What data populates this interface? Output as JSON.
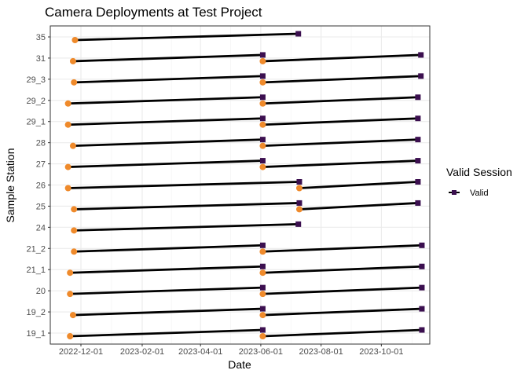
{
  "chart_data": {
    "type": "segment-timeline",
    "title": "Camera Deployments at Test Project",
    "xlabel": "Date",
    "ylabel": "Sample Station",
    "x_tick_labels": [
      "2022-12-01",
      "2023-02-01",
      "2023-04-01",
      "2023-06-01",
      "2023-08-01",
      "2023-10-01"
    ],
    "x_range": [
      "2022-10-31",
      "2023-11-19"
    ],
    "stations": [
      "35",
      "31",
      "29_3",
      "29_2",
      "29_1",
      "28",
      "27",
      "26",
      "25",
      "24",
      "21_2",
      "21_1",
      "20",
      "19_2",
      "19_1"
    ],
    "legend": {
      "title": "Valid Session",
      "items": [
        {
          "label": "Valid",
          "color": "#3b0f4f"
        }
      ]
    },
    "grid": true,
    "legend_position": "right",
    "colors": {
      "start_point": "#ef8a2b",
      "end_point": "#3b0f4f",
      "segment": "#000000",
      "panel_border": "#333333",
      "grid": "#ebebeb"
    },
    "deployments": [
      {
        "station": "35",
        "start": "2022-11-25",
        "end": "2023-07-09"
      },
      {
        "station": "31",
        "start": "2022-11-23",
        "end": "2023-06-03"
      },
      {
        "station": "31",
        "start": "2023-06-03",
        "end": "2023-11-10"
      },
      {
        "station": "29_3",
        "start": "2022-11-24",
        "end": "2023-06-03"
      },
      {
        "station": "29_3",
        "start": "2023-06-03",
        "end": "2023-11-10"
      },
      {
        "station": "29_2",
        "start": "2022-11-18",
        "end": "2023-06-03"
      },
      {
        "station": "29_2",
        "start": "2023-06-03",
        "end": "2023-11-07"
      },
      {
        "station": "29_1",
        "start": "2022-11-18",
        "end": "2023-06-03"
      },
      {
        "station": "29_1",
        "start": "2023-06-03",
        "end": "2023-11-07"
      },
      {
        "station": "28",
        "start": "2022-11-23",
        "end": "2023-06-03"
      },
      {
        "station": "28",
        "start": "2023-06-03",
        "end": "2023-11-07"
      },
      {
        "station": "27",
        "start": "2022-11-18",
        "end": "2023-06-03"
      },
      {
        "station": "27",
        "start": "2023-06-03",
        "end": "2023-11-07"
      },
      {
        "station": "26",
        "start": "2022-11-18",
        "end": "2023-07-10"
      },
      {
        "station": "26",
        "start": "2023-07-10",
        "end": "2023-11-07"
      },
      {
        "station": "25",
        "start": "2022-11-24",
        "end": "2023-07-10"
      },
      {
        "station": "25",
        "start": "2023-07-10",
        "end": "2023-11-07"
      },
      {
        "station": "24",
        "start": "2022-11-24",
        "end": "2023-07-09"
      },
      {
        "station": "21_2",
        "start": "2022-11-24",
        "end": "2023-06-03"
      },
      {
        "station": "21_2",
        "start": "2023-06-03",
        "end": "2023-11-11"
      },
      {
        "station": "21_1",
        "start": "2022-11-20",
        "end": "2023-06-03"
      },
      {
        "station": "21_1",
        "start": "2023-06-03",
        "end": "2023-11-11"
      },
      {
        "station": "20",
        "start": "2022-11-20",
        "end": "2023-06-03"
      },
      {
        "station": "20",
        "start": "2023-06-03",
        "end": "2023-11-11"
      },
      {
        "station": "19_2",
        "start": "2022-11-23",
        "end": "2023-06-03"
      },
      {
        "station": "19_2",
        "start": "2023-06-03",
        "end": "2023-11-11"
      },
      {
        "station": "19_1",
        "start": "2022-11-20",
        "end": "2023-06-03"
      },
      {
        "station": "19_1",
        "start": "2023-06-03",
        "end": "2023-11-11"
      }
    ]
  }
}
